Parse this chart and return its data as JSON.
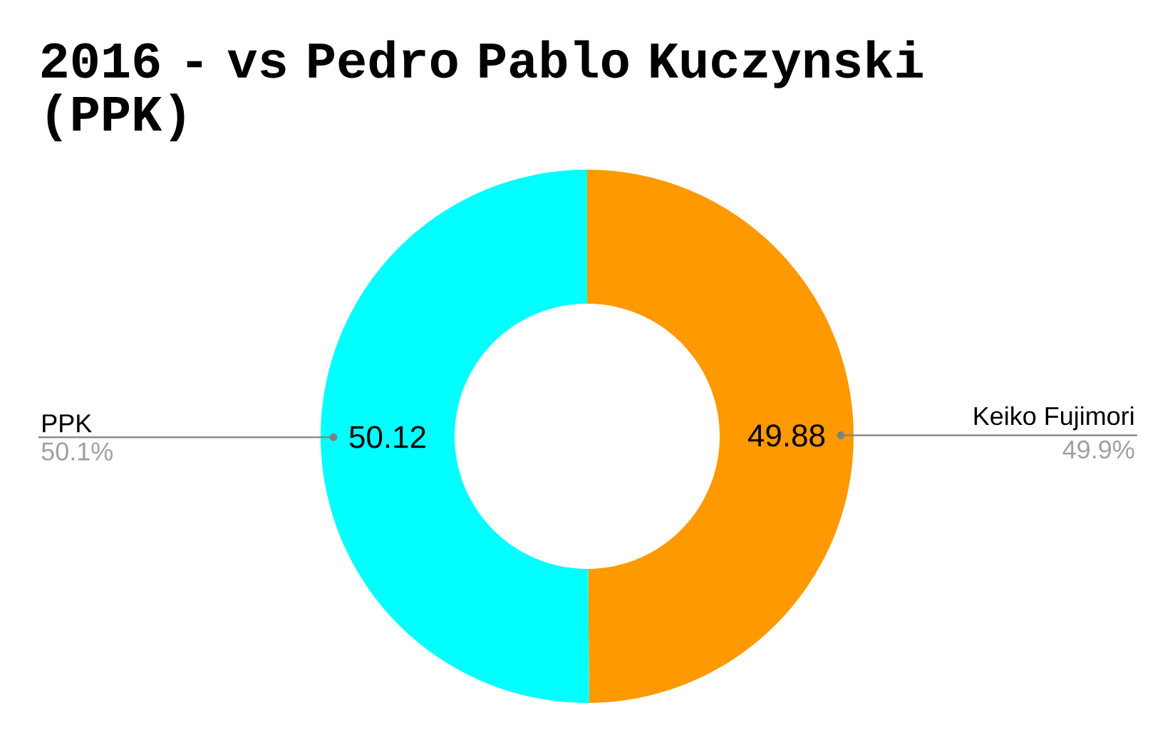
{
  "chart_data": {
    "type": "donut",
    "title": "2016 - vs Pedro Pablo Kuczynski (PPK)",
    "categories": [
      "Keiko Fujimori",
      "PPK"
    ],
    "values": [
      49.88,
      50.12
    ],
    "colors": [
      "#ff9900",
      "#00ffff"
    ],
    "value_labels": [
      "49.88",
      "50.12"
    ],
    "annotations": [
      "49.9%",
      "50.1%"
    ]
  }
}
